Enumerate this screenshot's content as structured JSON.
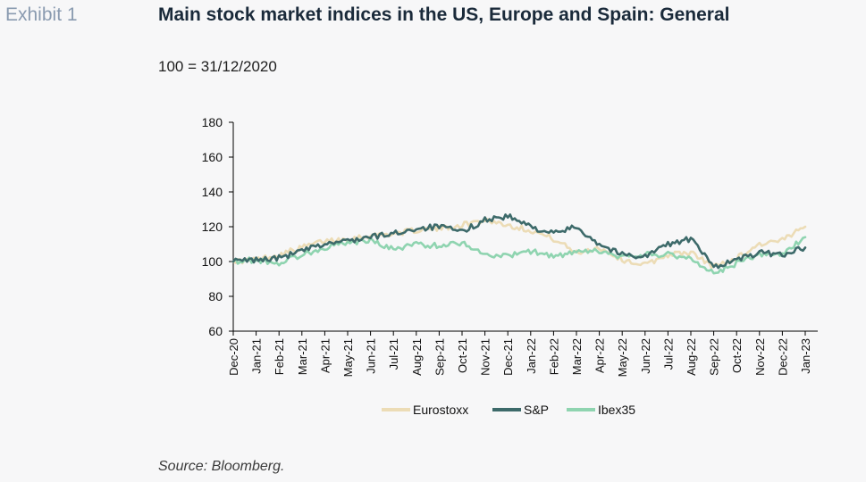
{
  "exhibit_label": "Exhibit 1",
  "title": "Main stock market indices in the US, Europe and Spain: General",
  "subtitle": "100 = 31/12/2020",
  "source": "Source: Bloomberg.",
  "colors": {
    "Eurostoxx": "#ecdcb6",
    "S&P": "#3d6a6a",
    "Ibex35": "#8fd4b0",
    "axis": "#000000"
  },
  "chart_data": {
    "type": "line",
    "title": "Main stock market indices in the US, Europe and Spain: General",
    "subtitle": "100 = 31/12/2020",
    "xlabel": "",
    "ylabel": "",
    "ylim": [
      60,
      180
    ],
    "yticks": [
      60,
      80,
      100,
      120,
      140,
      160,
      180
    ],
    "grid": false,
    "legend_position": "bottom",
    "categories": [
      "Dec-20",
      "Jan-21",
      "Feb-21",
      "Mar-21",
      "Apr-21",
      "May-21",
      "Jun-21",
      "Jul-21",
      "Aug-21",
      "Sep-21",
      "Oct-21",
      "Nov-21",
      "Dec-21",
      "Jan-22",
      "Feb-22",
      "Mar-22",
      "Apr-22",
      "May-22",
      "Jun-22",
      "Jul-22",
      "Aug-22",
      "Sep-22",
      "Oct-22",
      "Nov-22",
      "Dec-22",
      "Jan-23"
    ],
    "series": [
      {
        "name": "Eurostoxx",
        "values": [
          100,
          101,
          104,
          108,
          112,
          113,
          115,
          116,
          118,
          119,
          121,
          124,
          121,
          118,
          113,
          105,
          108,
          101,
          98,
          104,
          105,
          97,
          102,
          110,
          112,
          120
        ]
      },
      {
        "name": "S&P",
        "values": [
          100,
          101,
          102,
          106,
          110,
          112,
          114,
          116,
          119,
          120,
          117,
          124,
          126,
          120,
          116,
          120,
          110,
          104,
          103,
          110,
          113,
          97,
          101,
          105,
          104,
          108
        ]
      },
      {
        "name": "Ibex35",
        "values": [
          100,
          101,
          99,
          104,
          108,
          111,
          112,
          107,
          110,
          109,
          111,
          104,
          103,
          106,
          103,
          105,
          106,
          102,
          104,
          104,
          102,
          93,
          99,
          104,
          104,
          114
        ]
      }
    ]
  }
}
